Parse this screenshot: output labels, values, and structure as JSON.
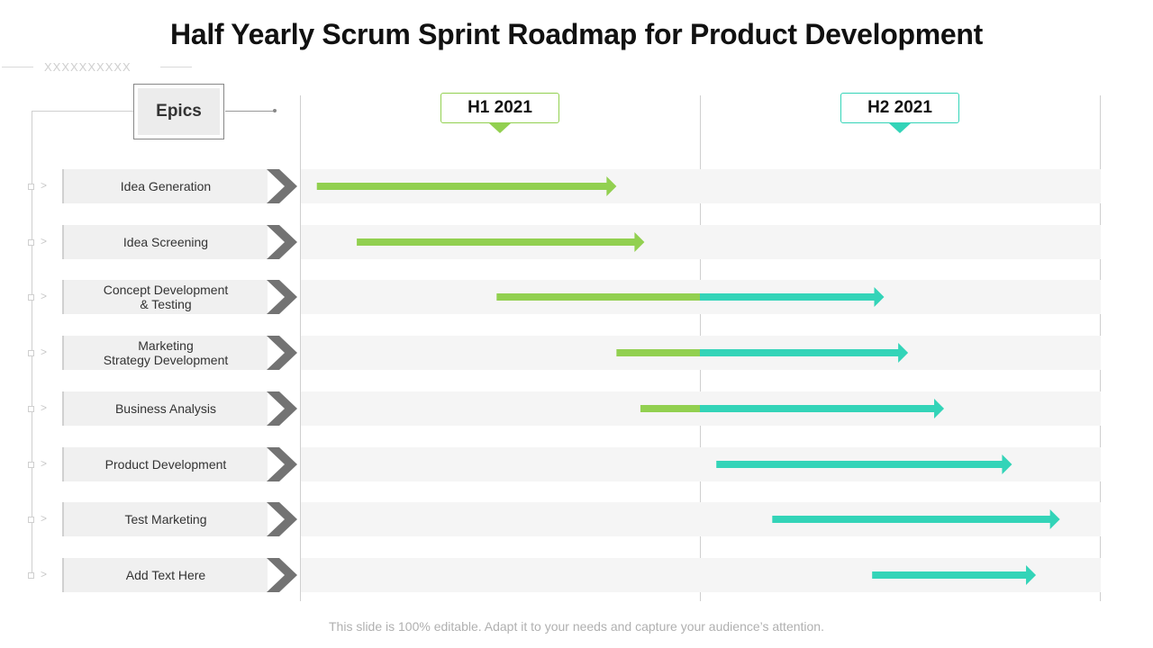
{
  "title": "Half Yearly Scrum Sprint Roadmap for Product Development",
  "decor_text": "XXXXXXXXXX",
  "epics_label": "Epics",
  "periods": [
    {
      "label": "H1 2021",
      "color": "#92d050"
    },
    {
      "label": "H2 2021",
      "color": "#33d4b8"
    }
  ],
  "colors": {
    "h1": "#92d050",
    "h2": "#33d4b8",
    "chevron": "#737373",
    "band": "#f5f5f5"
  },
  "footer": "This slide is 100% editable. Adapt it to your needs and capture your audience’s attention.",
  "chart_data": {
    "type": "gantt",
    "timeline_units": "half-years (0 = start of H1 2021, 1 = end of H1 / start of H2, 2 = end of H2)",
    "tasks": [
      {
        "name": "Idea Generation",
        "start": 0.04,
        "end": 0.79
      },
      {
        "name": "Idea Screening",
        "start": 0.14,
        "end": 0.86
      },
      {
        "name": "Concept Development\n& Testing",
        "start": 0.49,
        "end": 1.46
      },
      {
        "name": "Marketing\nStrategy Development",
        "start": 0.79,
        "end": 1.52
      },
      {
        "name": "Business Analysis",
        "start": 0.85,
        "end": 1.61
      },
      {
        "name": "Product Development",
        "start": 1.04,
        "end": 1.78
      },
      {
        "name": "Test Marketing",
        "start": 1.18,
        "end": 1.9
      },
      {
        "name": "Add Text Here",
        "start": 1.43,
        "end": 1.84
      }
    ]
  }
}
